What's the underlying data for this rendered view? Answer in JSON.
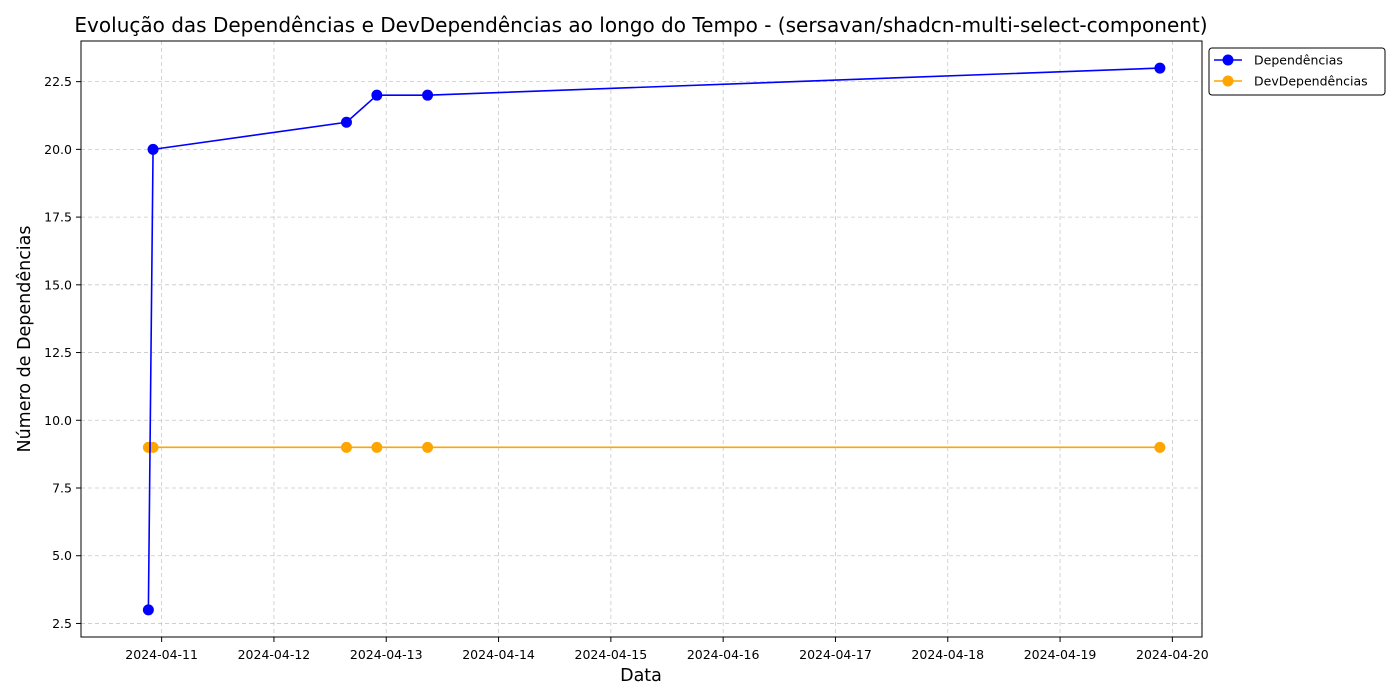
{
  "chart_data": {
    "type": "line",
    "title": "Evolução das Dependências e DevDependências ao longo do Tempo - (sersavan/shadcn-multi-select-component)",
    "xlabel": "Data",
    "ylabel": "Número de Dependências",
    "x_tick_labels": [
      "2024-04-11",
      "2024-04-12",
      "2024-04-13",
      "2024-04-14",
      "2024-04-15",
      "2024-04-16",
      "2024-04-17",
      "2024-04-18",
      "2024-04-19",
      "2024-04-20"
    ],
    "y_ticks": [
      2.5,
      5.0,
      7.5,
      10.0,
      12.5,
      15.0,
      17.5,
      20.0,
      22.5
    ],
    "y_tick_labels": [
      "2.5",
      "5.0",
      "7.5",
      "10.0",
      "12.5",
      "15.0",
      "17.5",
      "20.0",
      "22.5"
    ],
    "xlim": [
      "2024-04-10T06:46",
      "2024-04-20T06:20"
    ],
    "ylim": [
      2.0,
      24.0
    ],
    "grid": true,
    "legend_position": "upper-right-outside",
    "x": [
      "2024-04-10T21:10",
      "2024-04-10T22:10",
      "2024-04-12T15:30",
      "2024-04-12T22:00",
      "2024-04-13T08:50",
      "2024-04-19T21:20"
    ],
    "series": [
      {
        "name": "Dependências",
        "color": "#0000ff",
        "values": [
          3,
          20,
          21,
          22,
          22,
          23
        ]
      },
      {
        "name": "DevDependências",
        "color": "#ffa500",
        "values": [
          9,
          9,
          9,
          9,
          9,
          9
        ]
      }
    ]
  }
}
